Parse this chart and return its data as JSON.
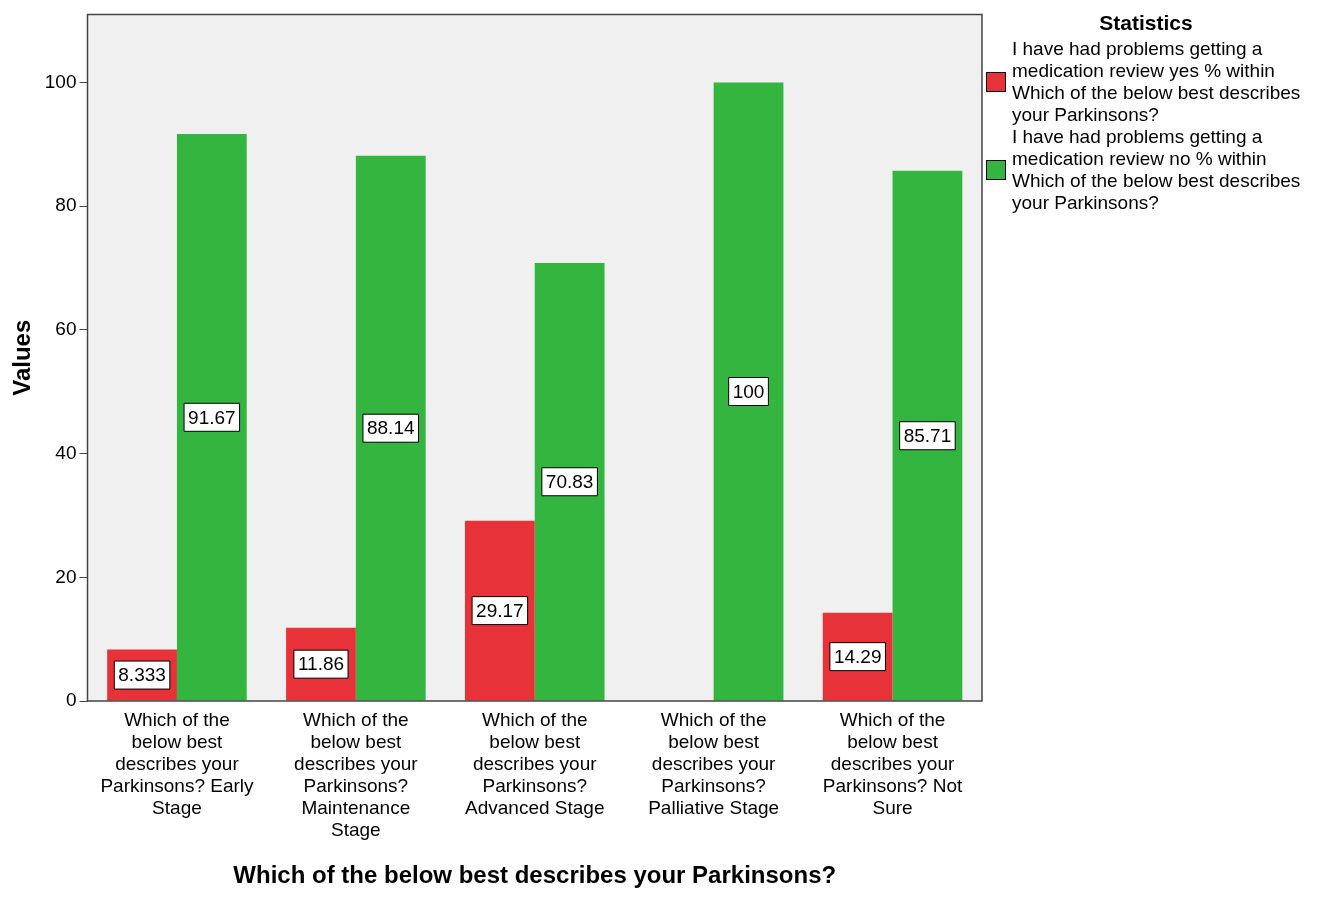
{
  "chart_data": {
    "type": "bar",
    "categories": [
      "Which of the below best describes your Parkinsons? Early Stage",
      "Which of the below best describes your Parkinsons? Maintenance Stage",
      "Which of the below best describes your Parkinsons? Advanced Stage",
      "Which of the below best describes your Parkinsons? Palliative Stage",
      "Which of the below best describes your Parkinsons? Not Sure"
    ],
    "series": [
      {
        "name": "I have had problems getting a medication review yes % within Which of the below best describes your Parkinsons?",
        "color": "#e8323a",
        "values": [
          8.333,
          11.86,
          29.17,
          0,
          14.29
        ],
        "value_labels": [
          "8.333",
          "11.86",
          "29.17",
          null,
          "14.29"
        ]
      },
      {
        "name": "I have had problems getting a medication review no % within Which of the below best describes your Parkinsons?",
        "color": "#33b540",
        "values": [
          91.67,
          88.14,
          70.83,
          100,
          85.71
        ],
        "value_labels": [
          "91.67",
          "88.14",
          "70.83",
          "100",
          "85.71"
        ]
      }
    ],
    "xlabel": "Which of the below best describes your Parkinsons?",
    "ylabel": "Values",
    "ylim": [
      0,
      111
    ],
    "yticks": [
      0,
      20,
      40,
      60,
      80,
      100
    ],
    "grid": false,
    "legend": "top right",
    "legend_title": "Statistics"
  }
}
